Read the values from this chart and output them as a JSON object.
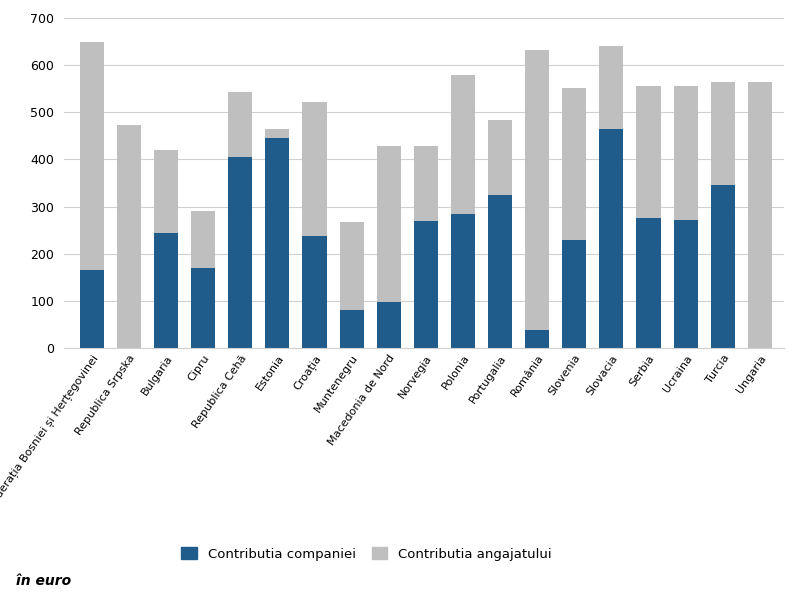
{
  "categories": [
    "Federația Bosniei și Herțegovinei",
    "Republica Srpska",
    "Bulgaria",
    "Cipru",
    "Republica Cehă",
    "Estonia",
    "Croația",
    "Muntenegru",
    "Macedonia de Nord",
    "Norvegia",
    "Polonia",
    "Portugalia",
    "România",
    "Slovenia",
    "Slovacia",
    "Serbia",
    "Ucraina",
    "Turcia",
    "Ungaria"
  ],
  "company_contributions": [
    165,
    0,
    245,
    170,
    405,
    445,
    238,
    80,
    98,
    270,
    285,
    325,
    38,
    230,
    465,
    275,
    272,
    345,
    0
  ],
  "employee_contributions": [
    485,
    473,
    175,
    120,
    138,
    20,
    283,
    187,
    330,
    158,
    295,
    158,
    595,
    322,
    175,
    280,
    283,
    220,
    565
  ],
  "company_color": "#1F5C8B",
  "employee_color": "#BFBFBF",
  "ylabel_text": "în euro",
  "legend_company": "Contributia companiei",
  "legend_employee": "Contributia angajatului",
  "ylim": [
    0,
    700
  ],
  "yticks": [
    0,
    100,
    200,
    300,
    400,
    500,
    600,
    700
  ],
  "bar_width": 0.65,
  "label_fontsize": 8.0,
  "label_rotation": 55
}
